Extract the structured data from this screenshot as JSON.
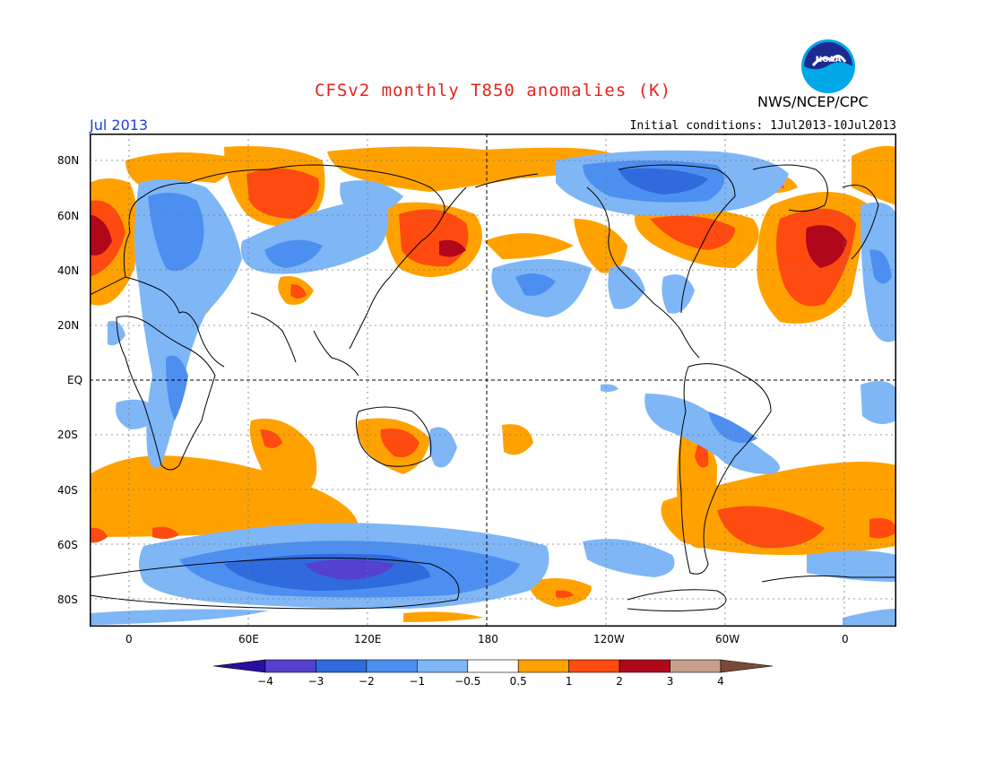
{
  "header": {
    "title": "CFSv2 monthly T850 anomalies (K)",
    "month": "Jul 2013",
    "initial_conditions": "Initial conditions: 1Jul2013-10Jul2013",
    "org": "NWS/NCEP/CPC",
    "logo_text": "NOAA"
  },
  "map": {
    "y_labels": [
      "80N",
      "60N",
      "40N",
      "20N",
      "EQ",
      "20S",
      "40S",
      "60S",
      "80S"
    ],
    "x_labels": [
      "0",
      "60E",
      "120E",
      "180",
      "120W",
      "60W",
      "0"
    ]
  },
  "colorbar": {
    "labels": [
      "-4",
      "-3",
      "-2",
      "-1",
      "-0.5",
      "0.5",
      "1",
      "2",
      "3",
      "4"
    ],
    "colors": [
      "#2b0fa0",
      "#5540cf",
      "#2f6bdc",
      "#4d8ff0",
      "#7fb6f6",
      "#ffffff",
      "#ffa200",
      "#ff4a10",
      "#b0071a",
      "#c7a08c",
      "#7a4a38"
    ]
  }
}
